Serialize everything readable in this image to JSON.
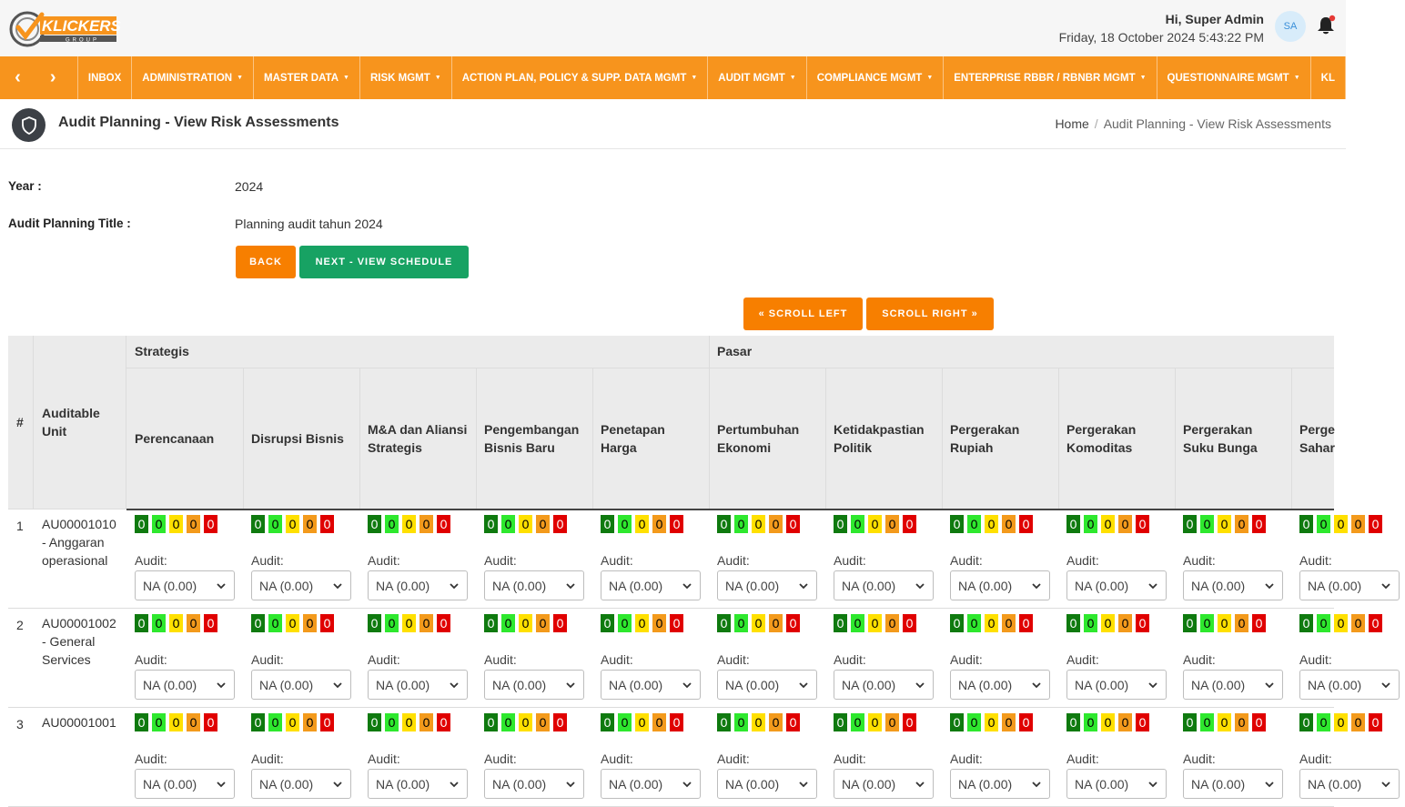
{
  "brand": {
    "name": "KLICKERS",
    "sub": "GROUP"
  },
  "header": {
    "greeting": "Hi, Super Admin",
    "datetime": "Friday, 18 October 2024 5:43:22 PM",
    "avatar_initials": "SA"
  },
  "nav": {
    "prev": "‹",
    "next": "›",
    "items": [
      {
        "label": "INBOX",
        "dropdown": false
      },
      {
        "label": "ADMINISTRATION",
        "dropdown": true
      },
      {
        "label": "MASTER DATA",
        "dropdown": true
      },
      {
        "label": "RISK MGMT",
        "dropdown": true
      },
      {
        "label": "ACTION PLAN, POLICY & SUPP. DATA MGMT",
        "dropdown": true
      },
      {
        "label": "AUDIT MGMT",
        "dropdown": true
      },
      {
        "label": "COMPLIANCE MGMT",
        "dropdown": true
      },
      {
        "label": "ENTERPRISE RBBR / RBNBR MGMT",
        "dropdown": true
      },
      {
        "label": "QUESTIONNAIRE MGMT",
        "dropdown": true
      },
      {
        "label": "KL",
        "dropdown": false
      }
    ]
  },
  "page": {
    "title": "Audit Planning - View Risk Assessments",
    "breadcrumb_home": "Home",
    "breadcrumb_current": "Audit Planning - View Risk Assessments"
  },
  "form": {
    "year_label": "Year :",
    "year_value": "2024",
    "title_label": "Audit Planning Title :",
    "title_value": "Planning audit tahun 2024"
  },
  "buttons": {
    "back": "BACK",
    "next_schedule": "NEXT - VIEW SCHEDULE",
    "scroll_left": "« SCROLL LEFT",
    "scroll_right": "SCROLL RIGHT »"
  },
  "table": {
    "col_no": "#",
    "col_unit": "Auditable Unit",
    "groups": [
      "Strategis",
      "Pasar"
    ],
    "columns": [
      [
        "Perencanaan"
      ],
      [
        "Disrupsi Bisnis"
      ],
      [
        "M&A dan Aliansi",
        "Strategis"
      ],
      [
        "Pengembangan",
        "Bisnis Baru"
      ],
      [
        "Penetapan",
        "Harga"
      ],
      [
        "Pertumbuhan",
        "Ekonomi"
      ],
      [
        "Ketidakpastian",
        "Politik"
      ],
      [
        "Pergerakan",
        "Rupiah"
      ],
      [
        "Pergerakan",
        "Komoditas"
      ],
      [
        "Pergerakan",
        "Suku Bunga"
      ],
      [
        "Perge",
        "Sahar"
      ]
    ],
    "audit_label": "Audit:",
    "select_value": "NA (0.00)",
    "score_values": [
      "0",
      "0",
      "0",
      "0",
      "0"
    ],
    "score_colors": [
      "#0f7a0f",
      "#2ee82e",
      "#ffe000",
      "#f39a1c",
      "#e00000"
    ],
    "rows": [
      {
        "no": "1",
        "unit": [
          "AU00001010",
          "- Anggaran",
          "operasional"
        ]
      },
      {
        "no": "2",
        "unit": [
          "AU00001002",
          "- General",
          "Services"
        ]
      },
      {
        "no": "3",
        "unit": [
          "AU00001001",
          "",
          ""
        ]
      }
    ]
  }
}
